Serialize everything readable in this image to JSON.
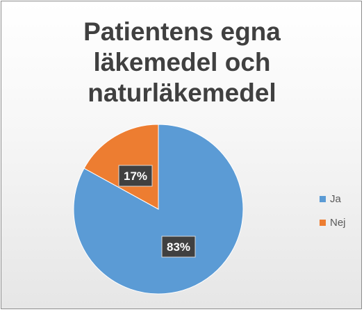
{
  "chart_data": {
    "type": "pie",
    "title": [
      "Patientens egna",
      "läkemedel och",
      "naturläkemedel"
    ],
    "categories": [
      "Ja",
      "Nej"
    ],
    "values": [
      83,
      17
    ],
    "data_labels": [
      "83%",
      "17%"
    ],
    "colors": [
      "#5b9bd5",
      "#ed7d31"
    ],
    "legend_position": "right"
  }
}
